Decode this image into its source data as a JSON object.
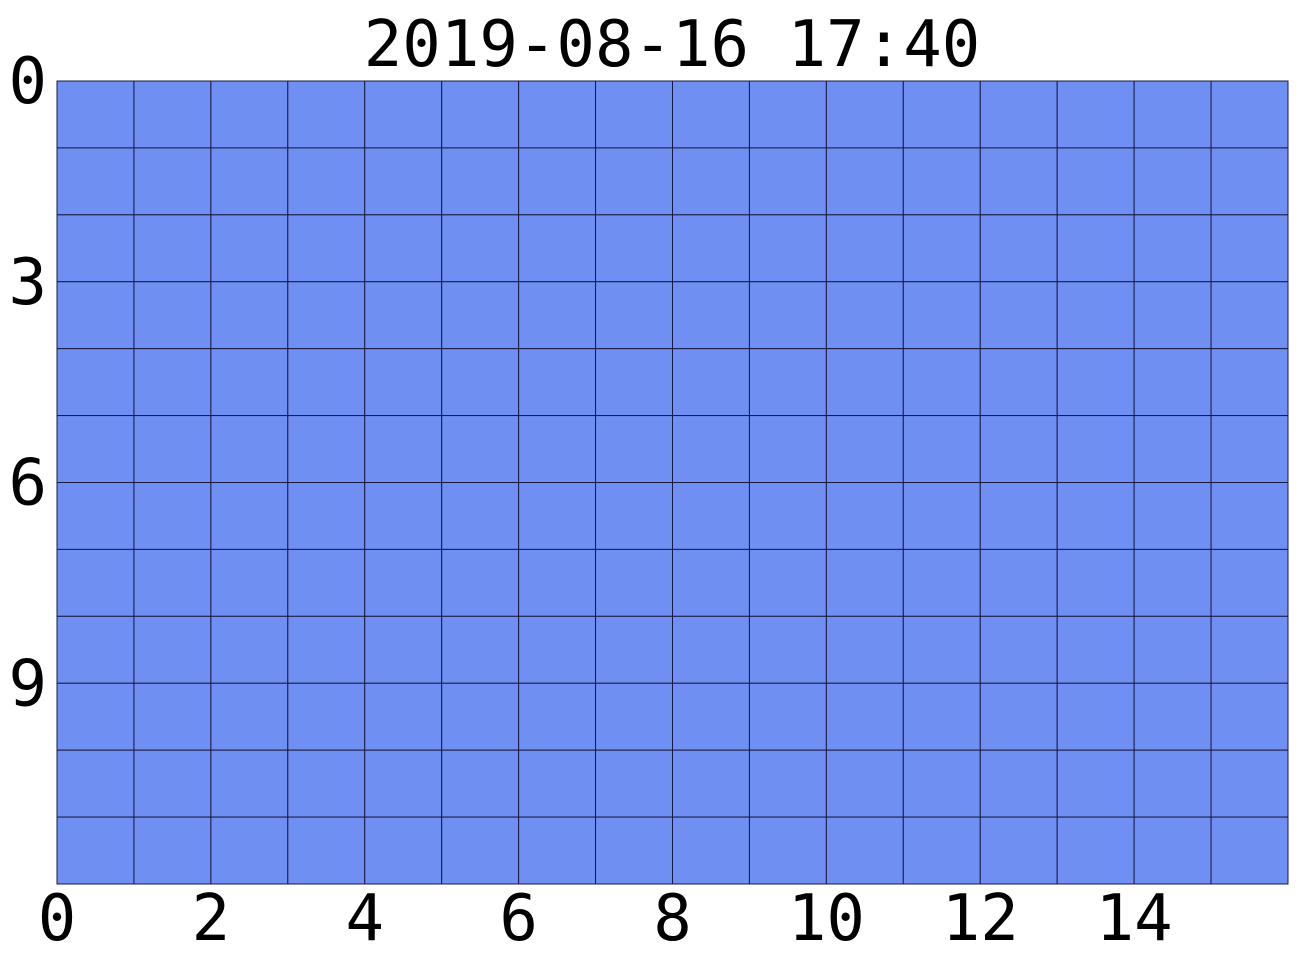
{
  "chart_data": {
    "type": "heatmap",
    "title": "2019-08-16 17:40",
    "xlabel": "",
    "ylabel": "",
    "n_cols": 16,
    "n_rows": 12,
    "xlim": [
      0,
      16
    ],
    "ylim": [
      0,
      12
    ],
    "y_axis_direction": "top-to-bottom",
    "x_ticks": [
      0,
      2,
      4,
      6,
      8,
      10,
      12,
      14
    ],
    "y_ticks": [
      0,
      3,
      6,
      9
    ],
    "uniform_value": 0,
    "cell_color": "#6f8ff2",
    "grid_color": "#1a1a40",
    "grid": true
  }
}
